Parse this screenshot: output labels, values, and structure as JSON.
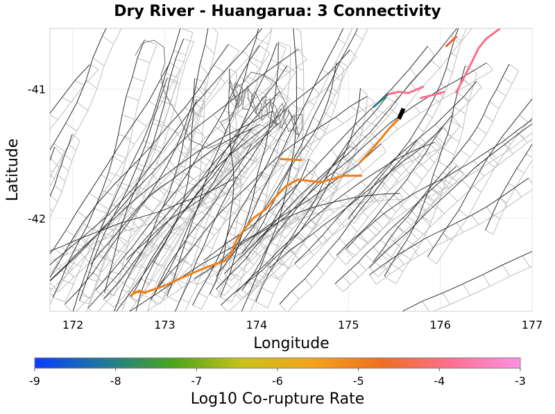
{
  "title": "Dry River - Huangarua: 3 Connectivity",
  "map": {
    "xlabel": "Longitude",
    "ylabel": "Latitude",
    "xlim": [
      171.75,
      177.0
    ],
    "ylim": [
      -42.72,
      -40.53
    ],
    "x_ticks": [
      172,
      173,
      174,
      175,
      176,
      177
    ],
    "y_ticks": [
      -41,
      -42
    ]
  },
  "colorbar": {
    "label": "Log10 Co-rupture Rate",
    "min": -9,
    "max": -3,
    "ticks": [
      "-9",
      "-8",
      "-7",
      "-6",
      "-5",
      "-4",
      "-3"
    ],
    "stops": [
      "#0a3cff",
      "#1f7a9a",
      "#4aa618",
      "#c9c21a",
      "#f5a31a",
      "#f06e1f",
      "#ff6f8f",
      "#ff8fe6"
    ]
  },
  "colors": {
    "orange": "#f07f18",
    "red_orange": "#f0602a",
    "pink": "#ff6b87",
    "teal": "#248080",
    "black": "#000000",
    "fault_trace": "#2e2e2e",
    "fault_patch": "#bdbdbd",
    "coastline": "#707070"
  },
  "ruptures": [
    {
      "id": "main-orange",
      "color": "#f07f18",
      "log10_rate": -5.0,
      "points": [
        [
          172.65,
          -42.57
        ],
        [
          172.8,
          -42.57
        ],
        [
          173.0,
          -42.52
        ],
        [
          173.25,
          -42.44
        ],
        [
          173.45,
          -42.38
        ],
        [
          173.65,
          -42.33
        ],
        [
          173.72,
          -42.28
        ],
        [
          173.78,
          -42.17
        ],
        [
          173.85,
          -42.1
        ],
        [
          173.96,
          -42.0
        ],
        [
          174.1,
          -41.93
        ],
        [
          174.2,
          -41.84
        ],
        [
          174.32,
          -41.75
        ],
        [
          174.45,
          -41.7
        ],
        [
          174.7,
          -41.72
        ],
        [
          174.95,
          -41.67
        ],
        [
          175.15,
          -41.67
        ]
      ]
    },
    {
      "id": "short-orange-west",
      "color": "#f07f18",
      "log10_rate": -5.0,
      "points": [
        [
          174.25,
          -41.54
        ],
        [
          174.5,
          -41.55
        ]
      ]
    },
    {
      "id": "southwest-tail",
      "color": "#f07f18",
      "log10_rate": -5.0,
      "points": [
        [
          172.62,
          -42.6
        ],
        [
          172.72,
          -42.56
        ],
        [
          172.8,
          -42.58
        ]
      ]
    },
    {
      "id": "wairarapa-orange",
      "color": "#f07f18",
      "log10_rate": -5.0,
      "points": [
        [
          175.12,
          -41.57
        ],
        [
          175.3,
          -41.43
        ],
        [
          175.45,
          -41.3
        ],
        [
          175.55,
          -41.23
        ]
      ]
    },
    {
      "id": "black-segment",
      "color": "#000000",
      "log10_rate": null,
      "points": [
        [
          175.55,
          -41.23
        ],
        [
          175.6,
          -41.15
        ]
      ]
    },
    {
      "id": "teal-segment",
      "color": "#248080",
      "log10_rate": -7.5,
      "points": [
        [
          175.27,
          -41.14
        ],
        [
          175.43,
          -41.04
        ]
      ]
    },
    {
      "id": "pink-upper",
      "color": "#ff6b87",
      "log10_rate": -3.8,
      "points": [
        [
          175.43,
          -41.04
        ],
        [
          175.55,
          -41.02
        ],
        [
          175.65,
          -41.03
        ],
        [
          175.82,
          -40.98
        ]
      ]
    },
    {
      "id": "pink-lower",
      "color": "#ff6b87",
      "log10_rate": -3.8,
      "points": [
        [
          175.78,
          -41.07
        ],
        [
          175.95,
          -41.04
        ],
        [
          176.05,
          -41.02
        ]
      ]
    },
    {
      "id": "pink-east",
      "color": "#ff6b87",
      "log10_rate": -3.6,
      "points": [
        [
          176.17,
          -41.03
        ],
        [
          176.28,
          -40.88
        ],
        [
          176.35,
          -40.78
        ],
        [
          176.42,
          -40.68
        ],
        [
          176.5,
          -40.61
        ],
        [
          176.65,
          -40.53
        ]
      ]
    },
    {
      "id": "red-east-short",
      "color": "#f0602a",
      "log10_rate": -4.2,
      "points": [
        [
          176.06,
          -40.67
        ],
        [
          176.18,
          -40.59
        ]
      ]
    }
  ]
}
